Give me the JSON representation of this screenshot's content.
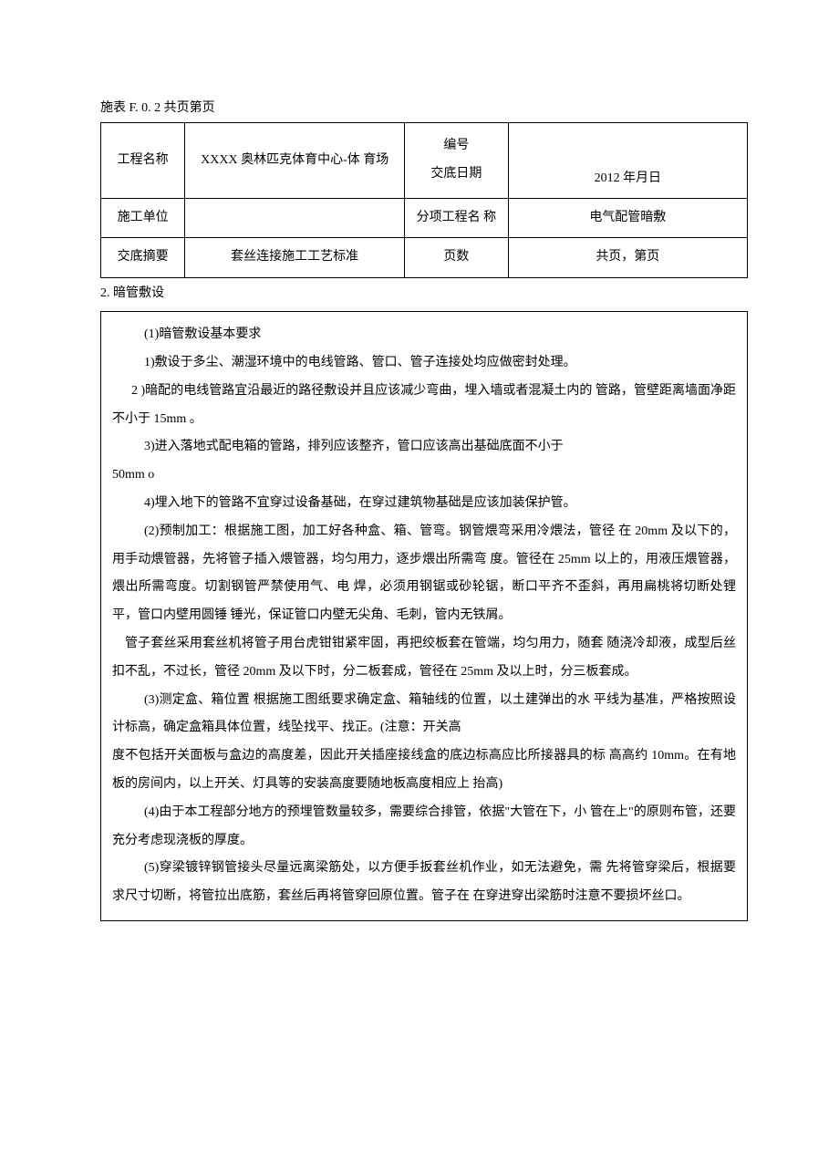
{
  "header": {
    "form_label": "施表 F. 0. 2 共页第页"
  },
  "table": {
    "row1": {
      "label1": "工程名称",
      "value1": "XXXX 奥林匹克体育中心-体 育场",
      "label2a": "编号",
      "label2b": "交底日期",
      "value2": "2012 年月日"
    },
    "row2": {
      "label1": "施工单位",
      "value1": "",
      "label2": "分项工程名 称",
      "value2": "电气配管暗敷"
    },
    "row3": {
      "label1": "交底摘要",
      "value1": "套丝连接施工工艺标准",
      "label2": "页数",
      "value2": "共页，第页"
    }
  },
  "section": {
    "title": "2. 暗管敷设",
    "p1": "(1)暗管敷设基本要求",
    "p2": "1)敷设于多尘、潮湿环境中的电线管路、管口、管子连接处均应做密封处理。",
    "p3": "2 )暗配的电线管路宜沿最近的路径敷设并且应该减少弯曲，埋入墙或者混凝土内的 管路，管壁距离墙面净距不小于 15mm 。",
    "p4": "3)进入落地式配电箱的管路，排列应该整齐，管口应该高出基础底面不小于",
    "p5": "50mm o",
    "p6": "4)埋入地下的管路不宜穿过设备基础，在穿过建筑物基础是应该加装保护管。",
    "p7": "(2)预制加工：根据施工图，加工好各种盒、箱、管弯。钢管煨弯采用冷煨法，管径 在 20mm 及以下的，用手动煨管器，先将管子插入煨管器，均匀用力，逐步煨出所需弯 度。管径在 25mm 以上的，用液压煨管器，煨出所需弯度。切割钢管严禁使用气、电 焊，必须用钢锯或砂轮锯，断口平齐不歪斜，再用扁桃将切断处锂平，管口内壁用圆锤 锤光，保证管口内壁无尖角、毛刺，管内无铁屑。",
    "p8": "管子套丝采用套丝机将管子用台虎钳钳紧牢固，再把绞板套在管端，均匀用力，随套 随浇冷却液，成型后丝扣不乱，不过长，管径 20mm 及以下时，分二板套成，管径在 25mm 及以上时，分三板套成。",
    "p9": "(3)测定盒、箱位置 根据施工图纸要求确定盒、箱轴线的位置，以土建弹出的水 平线为基准，严格按照设计标高，确定盒箱具体位置，线坠找平、找正。(注意：开关高",
    "p10": "度不包括开关面板与盒边的高度差，因此开关插座接线盒的底边标高应比所接器具的标 高高约 10mm。在有地板的房间内，以上开关、灯具等的安装高度要随地板高度相应上 抬高)",
    "p11": "(4)由于本工程部分地方的预埋管数量较多，需要综合排管，依据\"大管在下，小 管在上\"的原则布管，还要充分考虑现浇板的厚度。",
    "p12": "(5)穿梁镀锌钢管接头尽量远离梁筋处，以方便手扳套丝机作业，如无法避免，需 先将管穿梁后，根据要求尺寸切断，将管拉出底筋，套丝后再将管穿回原位置。管子在 在穿进穿出梁筋时注意不要损坏丝口。"
  }
}
